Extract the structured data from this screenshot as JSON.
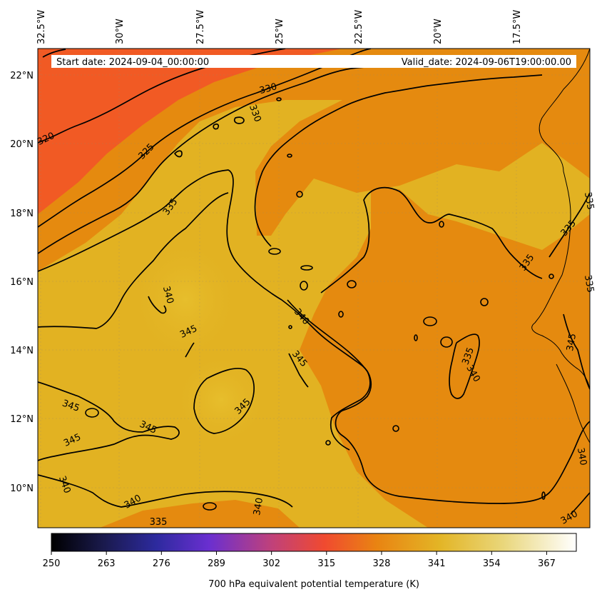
{
  "map": {
    "start_date": "Start date: 2024-09-04_00:00:00",
    "valid_date": "Valid_date: 2024-09-06T19:00:00.00",
    "lon_labels": [
      "32.5°W",
      "30°W",
      "27.5°W",
      "25°W",
      "22.5°W",
      "20°W",
      "17.5°W"
    ],
    "lat_labels": [
      "22°N",
      "20°N",
      "18°N",
      "16°N",
      "14°N",
      "12°N",
      "10°N"
    ],
    "contour_labels": [
      "320",
      "325",
      "330",
      "330",
      "335",
      "335",
      "335",
      "335",
      "335",
      "335",
      "335",
      "340",
      "340",
      "340",
      "340",
      "340",
      "340",
      "345",
      "345",
      "345",
      "345",
      "345",
      "345",
      "345"
    ],
    "colors": {
      "hot": "#f15a24",
      "orange": "#e58a0f",
      "gold": "#e2b222",
      "pale": "#e9c030",
      "contour": "#000000",
      "coast": "#000000"
    }
  },
  "colorbar": {
    "ticks": [
      "250",
      "263",
      "276",
      "289",
      "302",
      "315",
      "328",
      "341",
      "354",
      "367"
    ],
    "label": "700 hPa equivalent potential temperature (K)",
    "colormap": "CMRmap",
    "range": [
      250,
      374
    ]
  }
}
